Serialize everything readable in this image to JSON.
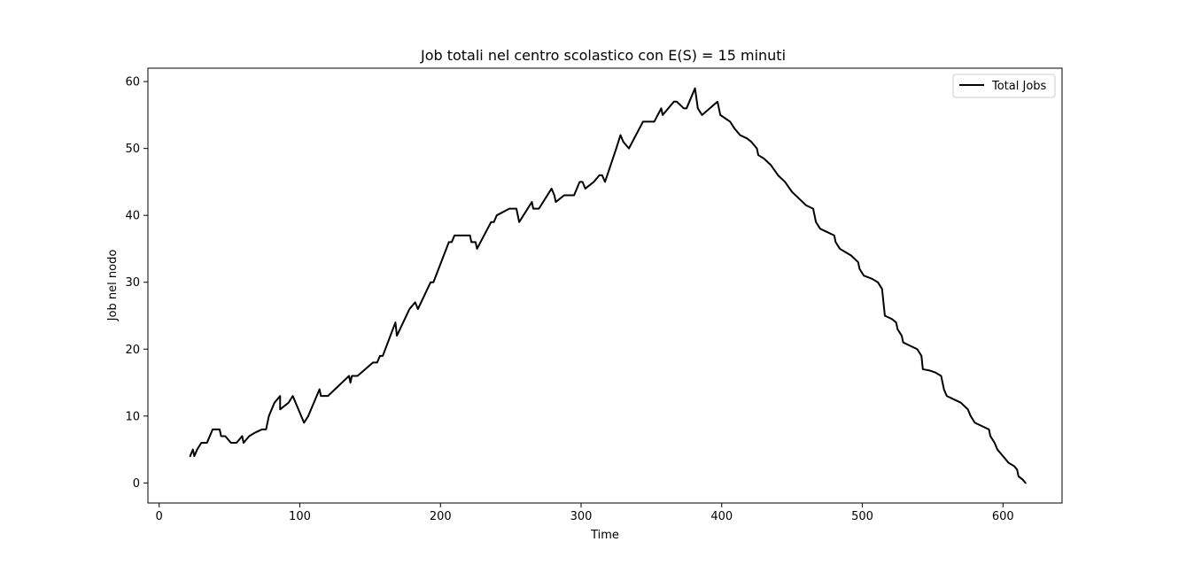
{
  "chart_data": {
    "type": "line",
    "title": "Job totali nel centro scolastico con E(S) = 15 minuti",
    "xlabel": "Time",
    "ylabel": "Job nel nodo",
    "xlim": [
      -8,
      642
    ],
    "ylim": [
      -3,
      62
    ],
    "xticks": [
      0,
      100,
      200,
      300,
      400,
      500,
      600
    ],
    "yticks": [
      0,
      10,
      20,
      30,
      40,
      50,
      60
    ],
    "grid": false,
    "legend_position": "top-right",
    "series": [
      {
        "name": "Total Jobs",
        "color": "#000000",
        "points": [
          [
            22,
            4
          ],
          [
            24,
            5
          ],
          [
            25,
            4
          ],
          [
            27,
            5
          ],
          [
            30,
            6
          ],
          [
            34,
            6
          ],
          [
            38,
            8
          ],
          [
            43,
            8
          ],
          [
            44,
            7
          ],
          [
            47,
            7
          ],
          [
            51,
            6
          ],
          [
            55,
            6
          ],
          [
            59,
            7
          ],
          [
            60,
            6
          ],
          [
            64,
            7
          ],
          [
            68,
            7.5
          ],
          [
            73,
            8
          ],
          [
            76,
            8
          ],
          [
            78,
            10
          ],
          [
            82,
            12
          ],
          [
            86,
            13
          ],
          [
            86,
            11
          ],
          [
            92,
            12
          ],
          [
            95,
            13
          ],
          [
            103,
            9
          ],
          [
            106,
            10
          ],
          [
            114,
            14
          ],
          [
            115,
            13
          ],
          [
            120,
            13
          ],
          [
            135,
            16
          ],
          [
            136,
            15
          ],
          [
            137,
            16
          ],
          [
            141,
            16
          ],
          [
            152,
            18
          ],
          [
            155,
            18
          ],
          [
            157,
            19
          ],
          [
            159,
            19
          ],
          [
            168,
            24
          ],
          [
            169,
            22
          ],
          [
            178,
            26
          ],
          [
            182,
            27
          ],
          [
            184,
            26
          ],
          [
            193,
            30
          ],
          [
            195,
            30
          ],
          [
            206,
            36
          ],
          [
            208,
            36
          ],
          [
            210,
            37
          ],
          [
            221,
            37
          ],
          [
            222,
            36
          ],
          [
            225,
            36
          ],
          [
            226,
            35
          ],
          [
            236,
            39
          ],
          [
            238,
            39
          ],
          [
            240,
            40
          ],
          [
            249,
            41
          ],
          [
            254,
            41
          ],
          [
            256,
            39
          ],
          [
            265,
            42
          ],
          [
            266,
            41
          ],
          [
            270,
            41
          ],
          [
            279,
            44
          ],
          [
            281,
            43
          ],
          [
            282,
            42
          ],
          [
            288,
            43
          ],
          [
            295,
            43
          ],
          [
            299,
            45
          ],
          [
            301,
            45
          ],
          [
            303,
            44
          ],
          [
            309,
            45
          ],
          [
            313,
            46
          ],
          [
            315,
            46
          ],
          [
            317,
            45
          ],
          [
            325,
            50
          ],
          [
            328,
            52
          ],
          [
            330,
            51
          ],
          [
            334,
            50
          ],
          [
            344,
            54
          ],
          [
            352,
            54
          ],
          [
            357,
            56
          ],
          [
            358,
            55
          ],
          [
            366,
            57
          ],
          [
            368,
            57
          ],
          [
            373,
            56
          ],
          [
            375,
            56
          ],
          [
            381,
            59
          ],
          [
            383,
            56
          ],
          [
            386,
            55
          ],
          [
            397,
            57
          ],
          [
            399,
            55
          ],
          [
            406,
            54
          ],
          [
            409,
            53
          ],
          [
            413,
            52
          ],
          [
            418,
            51.5
          ],
          [
            421,
            51
          ],
          [
            425,
            50
          ],
          [
            426,
            49
          ],
          [
            430,
            48.5
          ],
          [
            435,
            47.5
          ],
          [
            440,
            46
          ],
          [
            445,
            45
          ],
          [
            450,
            43.5
          ],
          [
            455,
            42.5
          ],
          [
            460,
            41.5
          ],
          [
            465,
            41
          ],
          [
            467,
            39
          ],
          [
            470,
            38
          ],
          [
            475,
            37.5
          ],
          [
            480,
            37
          ],
          [
            481,
            36
          ],
          [
            484,
            35
          ],
          [
            488,
            34.5
          ],
          [
            492,
            34
          ],
          [
            497,
            33
          ],
          [
            498,
            32
          ],
          [
            501,
            31
          ],
          [
            507,
            30.5
          ],
          [
            511,
            30
          ],
          [
            514,
            29
          ],
          [
            516,
            25
          ],
          [
            521,
            24.5
          ],
          [
            524,
            24
          ],
          [
            525,
            23
          ],
          [
            528,
            22
          ],
          [
            529,
            21
          ],
          [
            534,
            20.5
          ],
          [
            539,
            20
          ],
          [
            542,
            19
          ],
          [
            543,
            17
          ],
          [
            548,
            16.8
          ],
          [
            552,
            16.5
          ],
          [
            556,
            16
          ],
          [
            558,
            14
          ],
          [
            560,
            13
          ],
          [
            565,
            12.5
          ],
          [
            570,
            12
          ],
          [
            575,
            11
          ],
          [
            577,
            10
          ],
          [
            580,
            9
          ],
          [
            585,
            8.5
          ],
          [
            590,
            8
          ],
          [
            591,
            7
          ],
          [
            594,
            6
          ],
          [
            596,
            5
          ],
          [
            600,
            4
          ],
          [
            604,
            3
          ],
          [
            608,
            2.5
          ],
          [
            610,
            2
          ],
          [
            611,
            1
          ],
          [
            614,
            0.5
          ],
          [
            616,
            0
          ]
        ]
      }
    ]
  }
}
